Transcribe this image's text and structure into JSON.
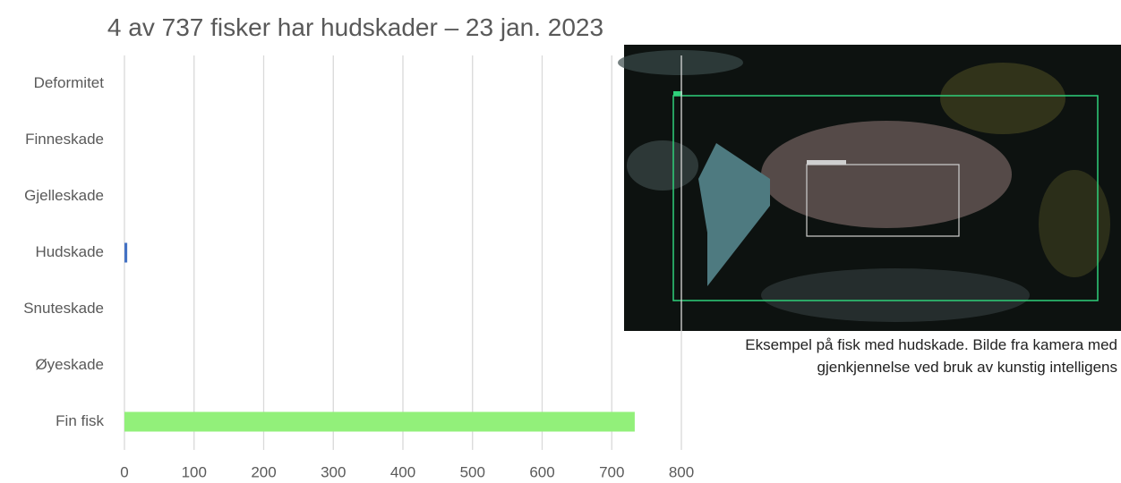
{
  "chart_data": {
    "type": "bar",
    "orientation": "horizontal",
    "title": "4 av 737 fisker har hudskader – 23 jan. 2023",
    "categories": [
      "Deformitet",
      "Finneskade",
      "Gjelleskade",
      "Hudskade",
      "Snuteskade",
      "Øyeskade",
      "Fin fisk"
    ],
    "values": [
      0,
      0,
      0,
      4,
      0,
      0,
      733
    ],
    "colors": [
      "#4472c4",
      "#4472c4",
      "#4472c4",
      "#4472c4",
      "#4472c4",
      "#4472c4",
      "#92f07a"
    ],
    "xlim": [
      0,
      800
    ],
    "xticks": [
      0,
      100,
      200,
      300,
      400,
      500,
      600,
      700,
      800
    ],
    "grid": true
  },
  "image_caption": [
    "Eksempel på fisk med hudskade. Bilde fra kamera med",
    "gjenkjennelse ved bruk av kunstig intelligens"
  ]
}
